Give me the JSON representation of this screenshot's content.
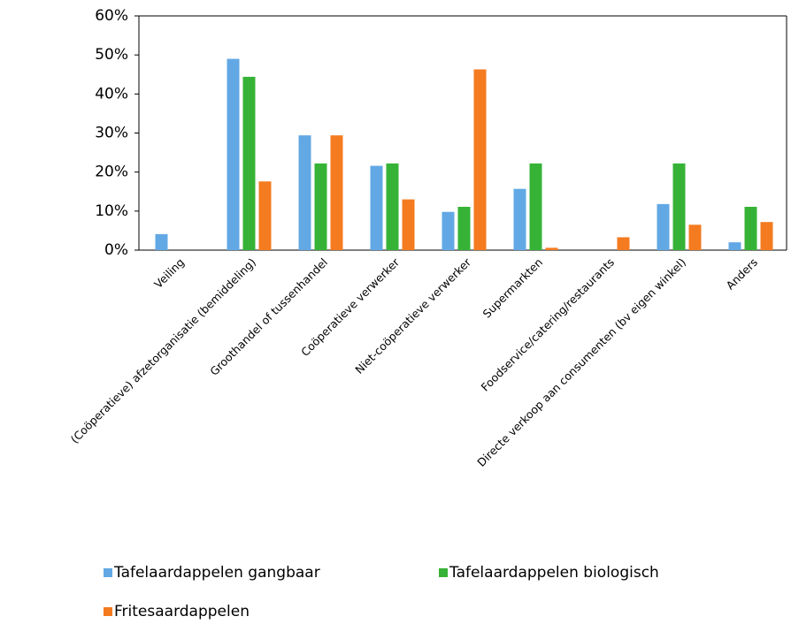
{
  "chart_data": {
    "type": "bar",
    "categories": [
      "Veiling",
      "(Coöperatieve) afzetorganisatie (bemiddeling)",
      "Groothandel of tussenhandel",
      "Coöperatieve verwerker",
      "Niet-coöperatieve verwerker",
      "Supermarkten",
      "Foodservice/catering/restaurants",
      "Directe verkoop aan consumenten (bv eigen winkel)",
      "Anders"
    ],
    "series": [
      {
        "name": "Tafelaardappelen gangbaar",
        "color": "#62a8e5",
        "values": [
          4.1,
          49,
          29.4,
          21.6,
          9.8,
          15.7,
          0,
          11.8,
          2
        ]
      },
      {
        "name": "Tafelaardappelen biologisch",
        "color": "#36b336",
        "values": [
          0,
          44.4,
          22.2,
          22.2,
          11.1,
          22.2,
          0,
          22.2,
          11.1
        ]
      },
      {
        "name": "Fritesaardappelen",
        "color": "#f47b20",
        "values": [
          0,
          17.6,
          29.4,
          13,
          46.3,
          0.6,
          3.3,
          6.5,
          7.2
        ]
      }
    ],
    "ylim": [
      0,
      60
    ],
    "yticks": [
      {
        "value": 0,
        "label": "0%"
      },
      {
        "value": 10,
        "label": "10%"
      },
      {
        "value": 20,
        "label": "20%"
      },
      {
        "value": 30,
        "label": "30%"
      },
      {
        "value": 40,
        "label": "40%"
      },
      {
        "value": 50,
        "label": "50%"
      },
      {
        "value": 60,
        "label": "60%"
      }
    ],
    "grid": false
  }
}
